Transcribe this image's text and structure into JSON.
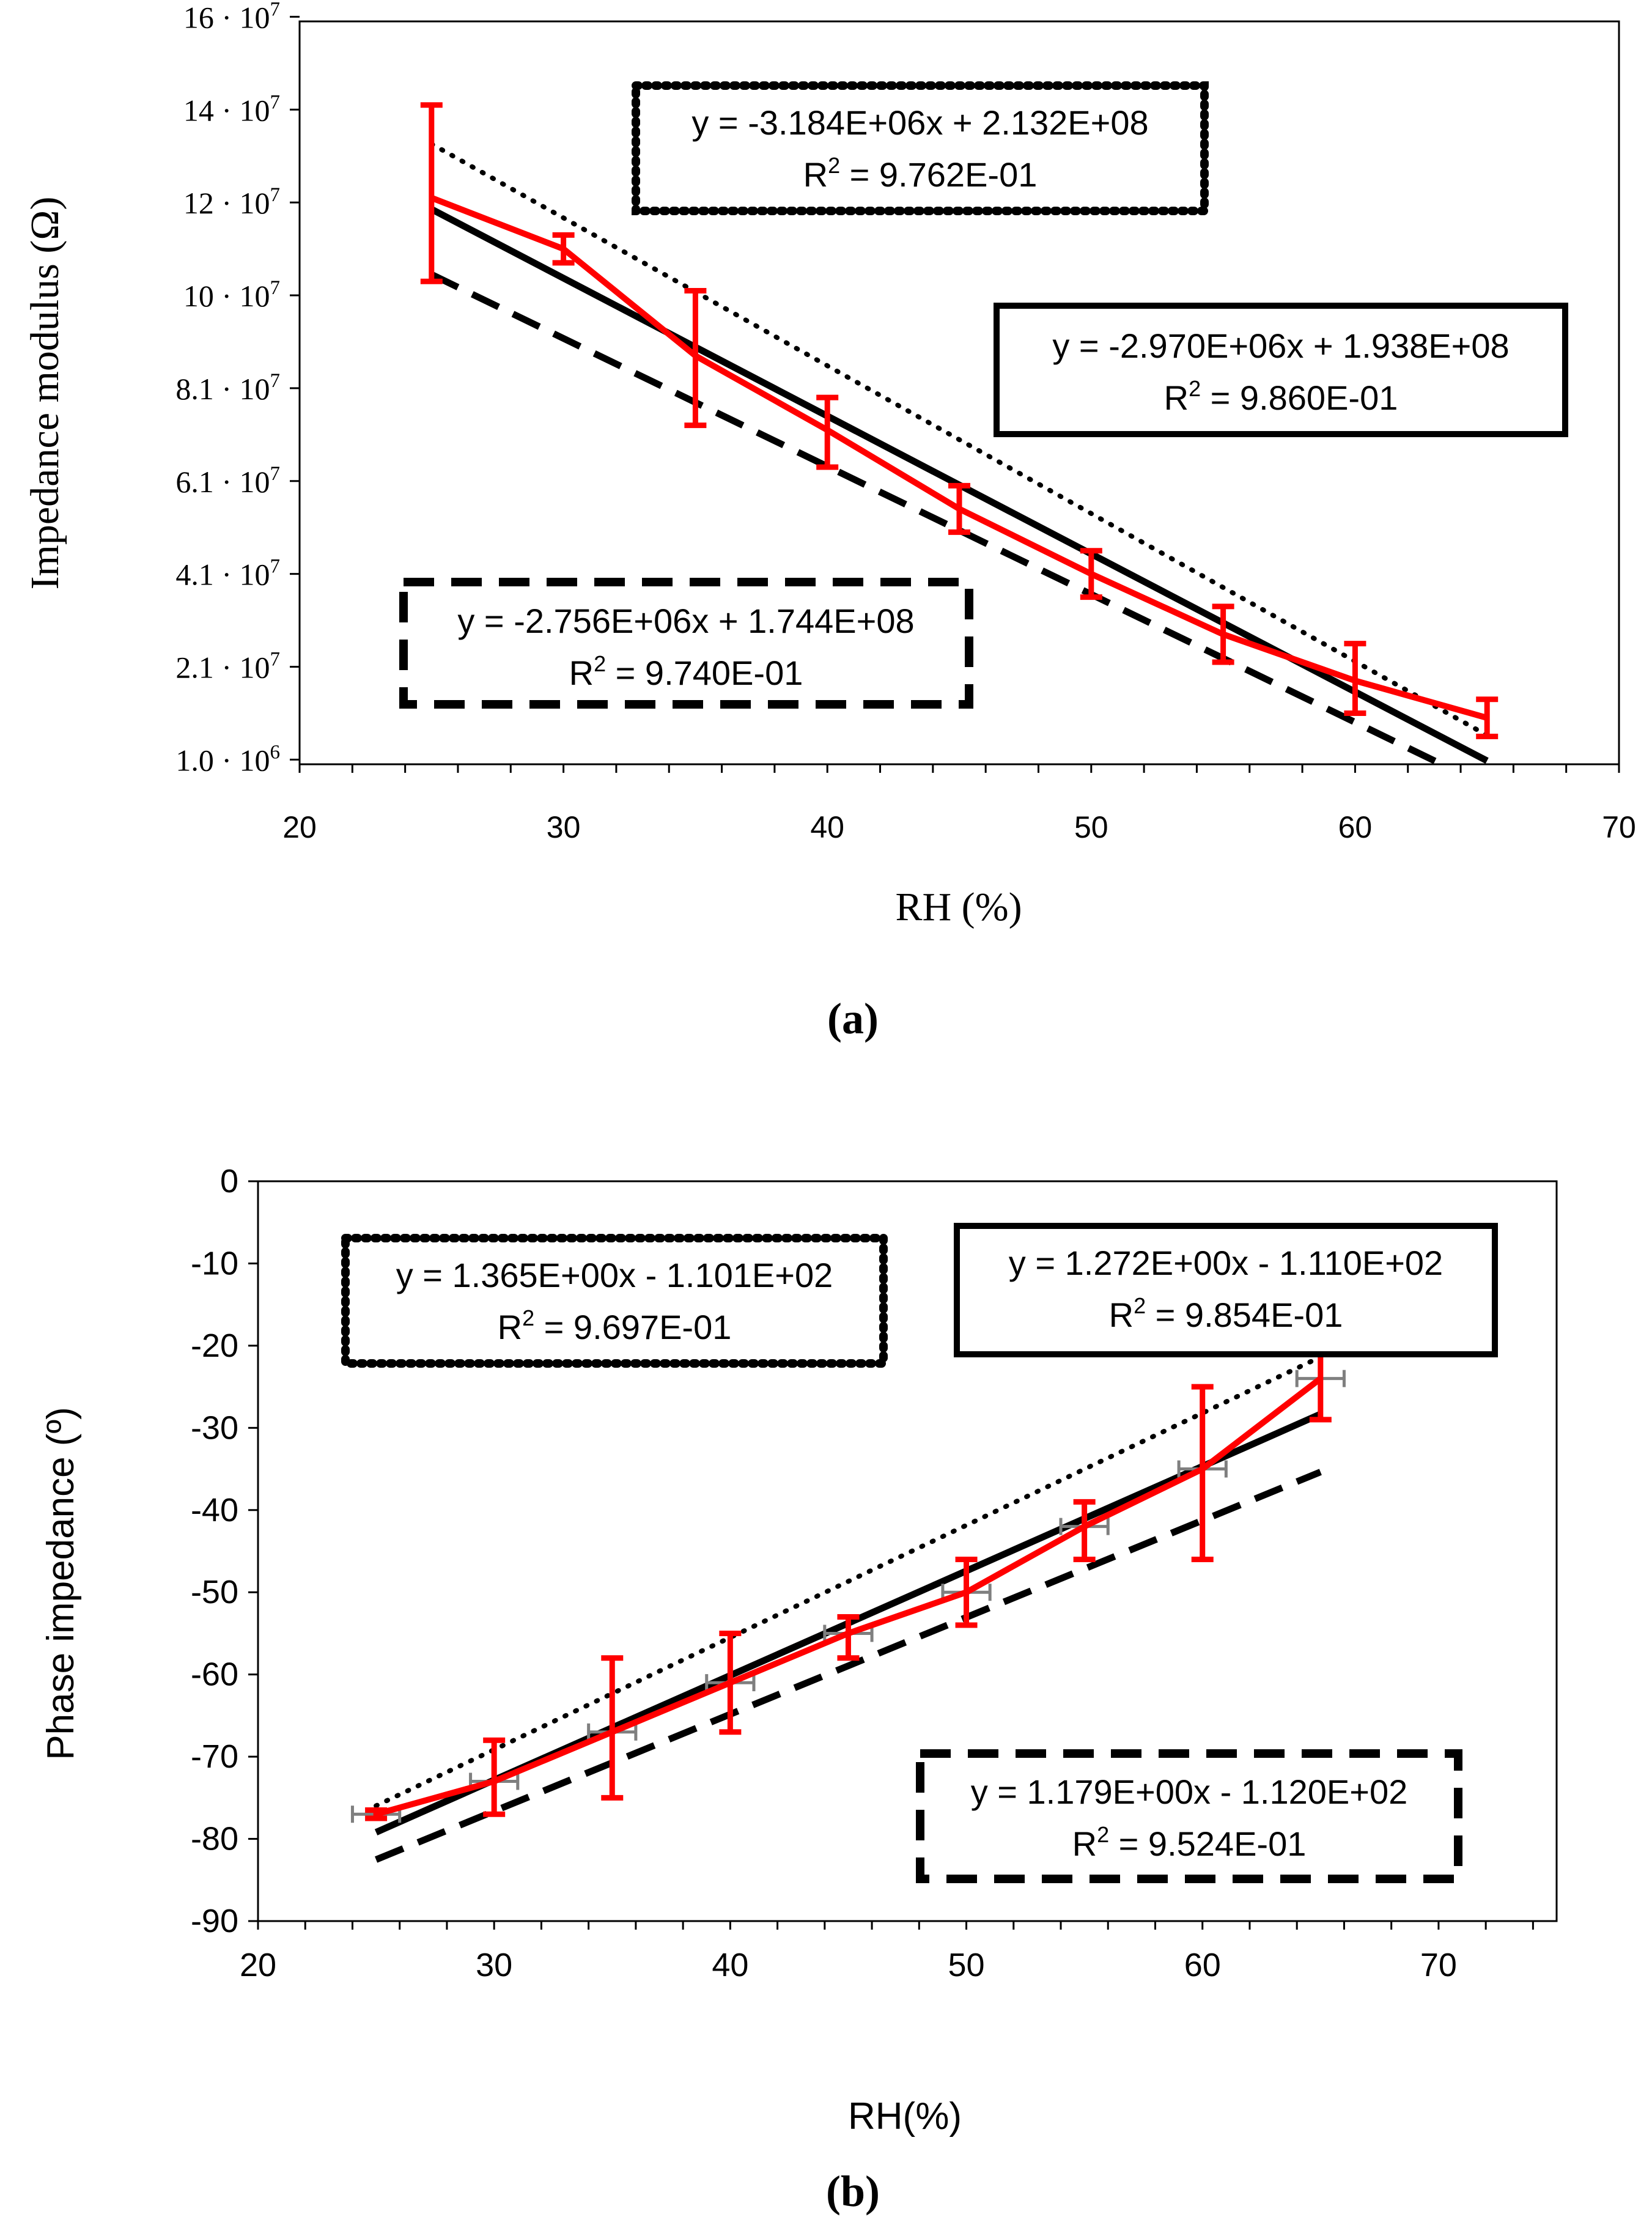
{
  "colors": {
    "measured": "#ff0000",
    "fit": "#000000",
    "axis": "#000000",
    "x_error": "#7f7f7f",
    "background": "#ffffff"
  },
  "chart_data": [
    {
      "type": "line",
      "panel_label": "(a)",
      "xlabel": "RH (%)",
      "ylabel": "Impedance modulus (Ω)",
      "xlim": [
        20,
        70
      ],
      "ylim": [
        0,
        160000000
      ],
      "x_ticks": [
        20,
        30,
        40,
        50,
        60,
        70
      ],
      "x_tick_labels": [
        "20",
        "30",
        "40",
        "50",
        "60",
        "70"
      ],
      "y_ticks": [
        1000000,
        21000000,
        41000000,
        61000000,
        81000000,
        101000000,
        121000000,
        141000000,
        161000000
      ],
      "y_tick_labels": [
        {
          "mantissa": "1.0",
          "exp": "6"
        },
        {
          "mantissa": "2.1",
          "exp": "7"
        },
        {
          "mantissa": "4.1",
          "exp": "7"
        },
        {
          "mantissa": "6.1",
          "exp": "7"
        },
        {
          "mantissa": "8.1",
          "exp": "7"
        },
        {
          "mantissa": "10",
          "exp": "7"
        },
        {
          "mantissa": "12",
          "exp": "7"
        },
        {
          "mantissa": "14",
          "exp": "7"
        },
        {
          "mantissa": "16",
          "exp": "7"
        }
      ],
      "series": [
        {
          "name": "measured",
          "x": [
            25,
            30,
            35,
            40,
            45,
            50,
            55,
            60,
            65
          ],
          "values": [
            122000000,
            111000000,
            88000000,
            72000000,
            55000000,
            41000000,
            28000000,
            18000000,
            10000000
          ],
          "err_low": [
            18000000,
            3000000,
            15000000,
            8000000,
            5000000,
            5000000,
            6000000,
            7000000,
            4000000
          ],
          "err_high": [
            20000000,
            3000000,
            14000000,
            7000000,
            5000000,
            5000000,
            6000000,
            8000000,
            4000000
          ]
        }
      ],
      "trendlines": [
        {
          "style": "dotted",
          "slope": -3184000,
          "intercept": 213200000,
          "x_range": [
            25,
            65
          ],
          "equation": "y = -3.184E+06x + 2.132E+08",
          "r2_prefix": "R",
          "r2_value": " = 9.762E-01"
        },
        {
          "style": "solid",
          "slope": -2970000,
          "intercept": 193800000,
          "x_range": [
            25,
            65
          ],
          "equation": "y = -2.970E+06x + 1.938E+08",
          "r2_prefix": "R",
          "r2_value": " = 9.860E-01"
        },
        {
          "style": "dashed",
          "slope": -2756000,
          "intercept": 174400000,
          "x_range": [
            25,
            65
          ],
          "equation": "y = -2.756E+06x + 1.744E+08",
          "r2_prefix": "R",
          "r2_value": " = 9.740E-01"
        }
      ]
    },
    {
      "type": "line",
      "panel_label": "(b)",
      "xlabel": "RH(%)",
      "ylabel": "Phase impedance (º)",
      "xlim": [
        20,
        75
      ],
      "ylim": [
        -90,
        0
      ],
      "x_ticks": [
        20,
        30,
        40,
        50,
        60,
        70
      ],
      "x_tick_labels": [
        "20",
        "30",
        "40",
        "50",
        "60",
        "70"
      ],
      "y_ticks": [
        0,
        -10,
        -20,
        -30,
        -40,
        -50,
        -60,
        -70,
        -80,
        -90
      ],
      "y_tick_labels": [
        "0",
        "-10",
        "-20",
        "-30",
        "-40",
        "-50",
        "-60",
        "-70",
        "-80",
        "-90"
      ],
      "series": [
        {
          "name": "measured",
          "x": [
            25,
            30,
            35,
            40,
            45,
            50,
            55,
            60,
            65
          ],
          "values": [
            -77,
            -73,
            -67,
            -61,
            -55,
            -50,
            -42,
            -35,
            -24
          ],
          "err_low": [
            0.5,
            4,
            8,
            6,
            3,
            4,
            4,
            11,
            5
          ],
          "err_high": [
            0.5,
            5,
            9,
            6,
            2,
            4,
            3,
            10,
            5
          ],
          "x_err": [
            1,
            1,
            1,
            1,
            1,
            1,
            1,
            1,
            1
          ]
        }
      ],
      "trendlines": [
        {
          "style": "dotted",
          "slope": 1.365,
          "intercept": -110.1,
          "x_range": [
            25,
            65
          ],
          "equation": "y = 1.365E+00x - 1.101E+02",
          "r2_prefix": "R",
          "r2_value": " = 9.697E-01"
        },
        {
          "style": "solid",
          "slope": 1.272,
          "intercept": -111.0,
          "x_range": [
            25,
            65
          ],
          "equation": "y = 1.272E+00x - 1.110E+02",
          "r2_prefix": "R",
          "r2_value": " = 9.854E-01"
        },
        {
          "style": "dashed",
          "slope": 1.179,
          "intercept": -112.0,
          "x_range": [
            25,
            65
          ],
          "equation": "y = 1.179E+00x - 1.120E+02",
          "r2_prefix": "R",
          "r2_value": " = 9.524E-01"
        }
      ]
    }
  ]
}
